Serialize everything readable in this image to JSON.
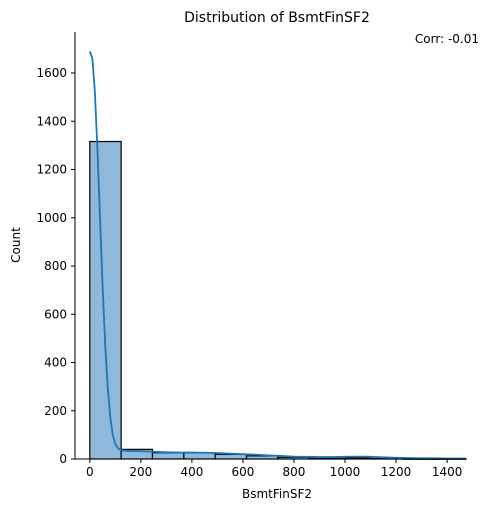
{
  "chart_data": {
    "type": "bar",
    "title": "Distribution of BsmtFinSF2",
    "xlabel": "BsmtFinSF2",
    "ylabel": "Count",
    "annotation": "Corr: -0.01",
    "xlim": [
      -58,
      1474
    ],
    "ylim": [
      0,
      1770
    ],
    "x_ticks": [
      0,
      200,
      400,
      600,
      800,
      1000,
      1200,
      1400
    ],
    "y_ticks": [
      0,
      200,
      400,
      600,
      800,
      1000,
      1200,
      1400,
      1600
    ],
    "bin_width": 122.8,
    "bins": [
      {
        "start": 0.0,
        "end": 122.8,
        "count": 1316
      },
      {
        "start": 122.8,
        "end": 245.6,
        "count": 40
      },
      {
        "start": 245.6,
        "end": 368.4,
        "count": 26
      },
      {
        "start": 368.4,
        "end": 491.2,
        "count": 26
      },
      {
        "start": 491.2,
        "end": 614.0,
        "count": 19
      },
      {
        "start": 614.0,
        "end": 736.8,
        "count": 13
      },
      {
        "start": 736.8,
        "end": 859.6,
        "count": 7
      },
      {
        "start": 859.6,
        "end": 982.4,
        "count": 4
      },
      {
        "start": 982.4,
        "end": 1105.2,
        "count": 5
      },
      {
        "start": 1105.2,
        "end": 1228.0,
        "count": 2
      },
      {
        "start": 1228.0,
        "end": 1350.8,
        "count": 1
      },
      {
        "start": 1350.8,
        "end": 1473.6,
        "count": 1
      }
    ],
    "kde": {
      "x": [
        0,
        10,
        20,
        30,
        40,
        50,
        60,
        70,
        80,
        90,
        100,
        110,
        120,
        130,
        150,
        175,
        200,
        250,
        300,
        350,
        400,
        450,
        500,
        550,
        600,
        650,
        700,
        750,
        800,
        850,
        900,
        950,
        1000,
        1050,
        1080,
        1100,
        1150,
        1200,
        1250,
        1300,
        1350,
        1400,
        1474
      ],
      "y": [
        1690,
        1660,
        1520,
        1280,
        1000,
        720,
        480,
        300,
        175,
        100,
        62,
        45,
        38,
        35,
        34,
        33,
        32,
        30,
        28,
        27,
        27,
        26,
        25,
        22,
        20,
        18,
        15,
        13,
        10,
        9,
        8,
        8,
        9,
        10,
        10,
        9,
        7,
        5,
        4,
        3,
        3,
        2,
        2
      ]
    },
    "grid": false,
    "colors": {
      "bar_fill": "#8fbadb",
      "bar_edge": "#000000",
      "kde_line": "#1f77b4",
      "axis": "#000000"
    }
  }
}
